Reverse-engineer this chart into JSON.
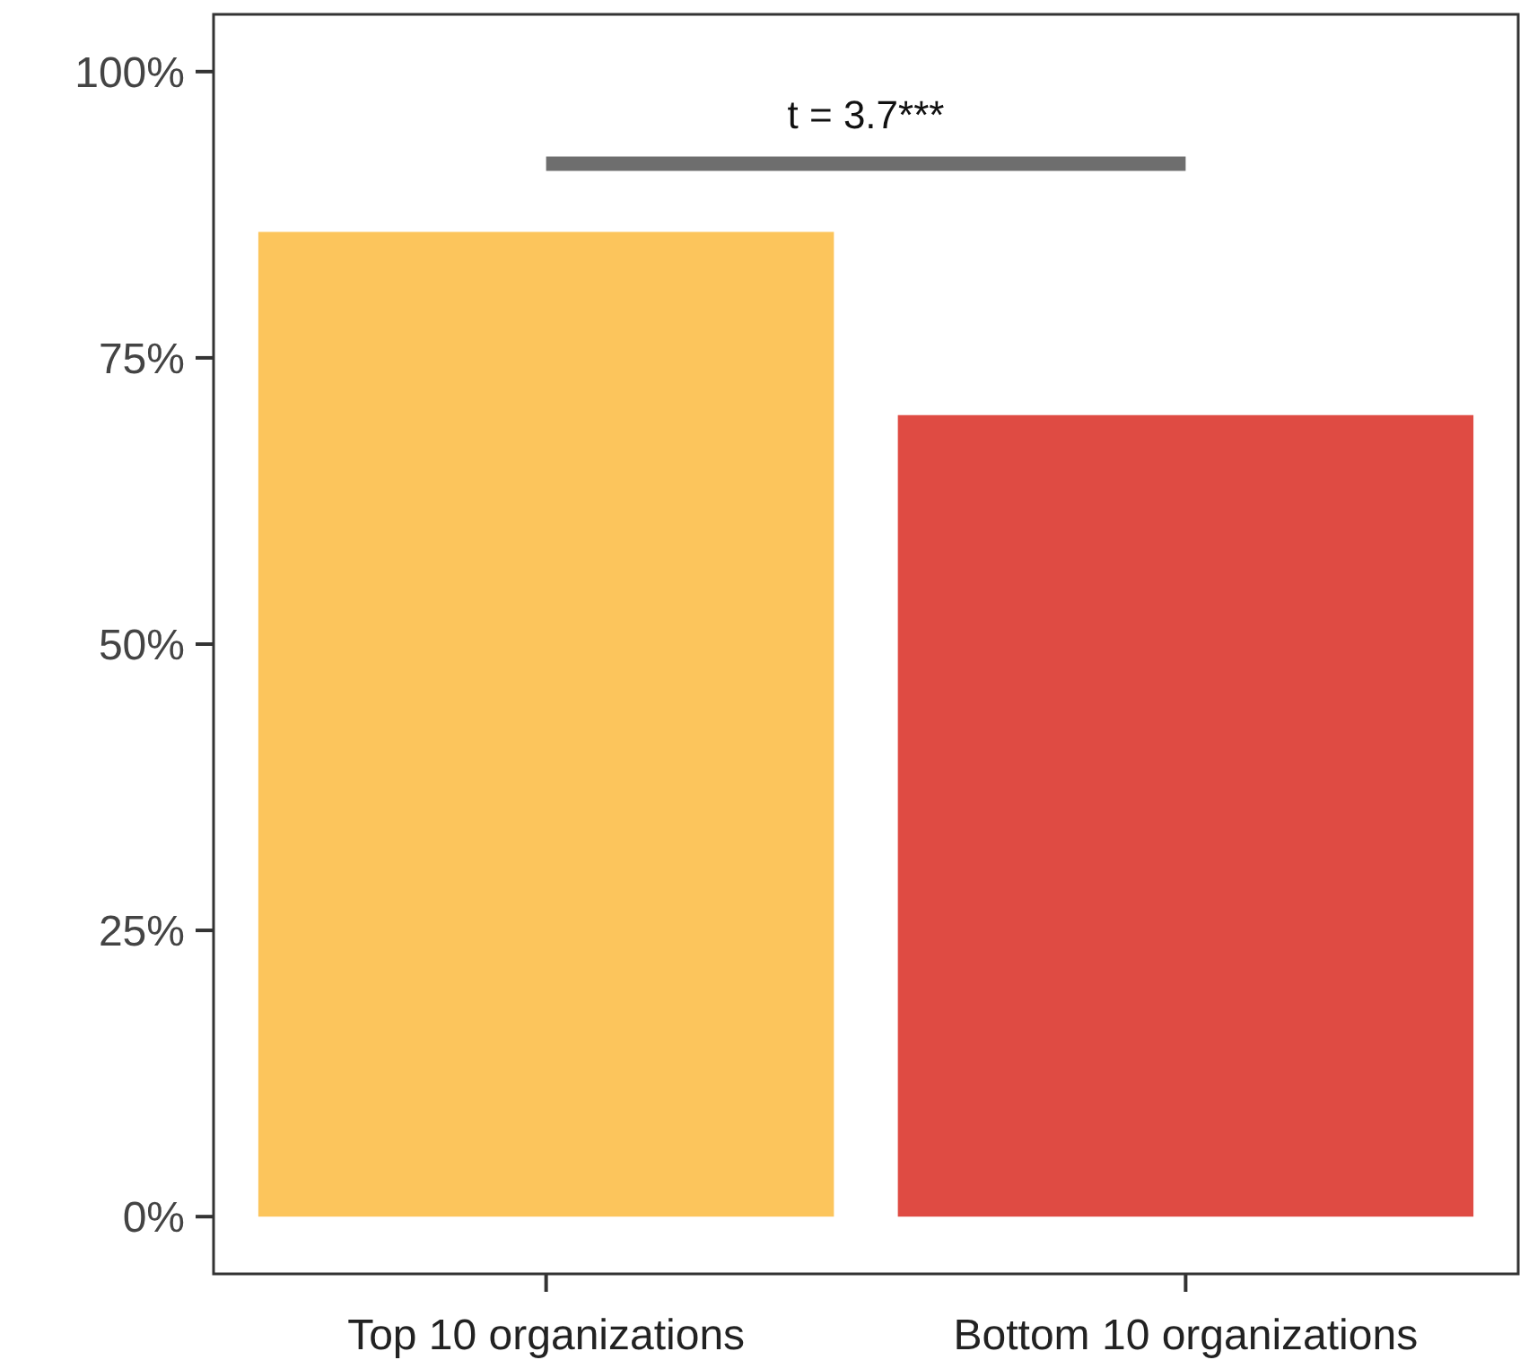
{
  "chart_data": {
    "type": "bar",
    "categories": [
      "Top 10 organizations",
      "Bottom 10 organizations"
    ],
    "values": [
      86,
      70
    ],
    "colors": [
      "#fcc55c",
      "#df4b43"
    ],
    "ylim": [
      -5,
      105
    ],
    "yticks": [
      {
        "value": 0,
        "label": "0%"
      },
      {
        "value": 25,
        "label": "25%"
      },
      {
        "value": 50,
        "label": "50%"
      },
      {
        "value": 75,
        "label": "75%"
      },
      {
        "value": 100,
        "label": "100%"
      }
    ],
    "annotations": [
      "t = 3.7***"
    ],
    "grid": false
  }
}
